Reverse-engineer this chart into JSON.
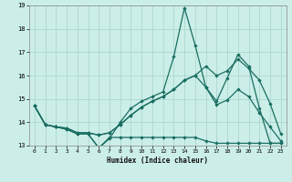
{
  "xlabel": "Humidex (Indice chaleur)",
  "background_color": "#cceee8",
  "grid_color": "#aad8d0",
  "line_color": "#1a6e62",
  "xlim": [
    -0.5,
    23.5
  ],
  "ylim": [
    13,
    19
  ],
  "yticks": [
    13,
    14,
    15,
    16,
    17,
    18,
    19
  ],
  "xticks": [
    0,
    1,
    2,
    3,
    4,
    5,
    6,
    7,
    8,
    9,
    10,
    11,
    12,
    13,
    14,
    15,
    16,
    17,
    18,
    19,
    20,
    21,
    22,
    23
  ],
  "line1": [
    14.7,
    13.9,
    13.8,
    13.7,
    13.5,
    13.5,
    12.9,
    13.3,
    14.0,
    14.6,
    14.9,
    15.1,
    15.3,
    16.8,
    18.9,
    17.3,
    15.5,
    14.9,
    15.9,
    16.9,
    16.4,
    14.6,
    13.1,
    13.1
  ],
  "line2": [
    14.7,
    13.9,
    13.8,
    13.7,
    13.5,
    13.5,
    12.9,
    13.35,
    13.35,
    13.35,
    13.35,
    13.35,
    13.35,
    13.35,
    13.35,
    13.35,
    13.2,
    13.1,
    13.1,
    13.1,
    13.1,
    13.1,
    13.1,
    13.1
  ],
  "line3": [
    14.7,
    13.9,
    13.8,
    13.75,
    13.55,
    13.55,
    13.45,
    13.55,
    13.9,
    14.3,
    14.65,
    14.9,
    15.1,
    15.4,
    15.8,
    16.0,
    16.4,
    16.0,
    16.2,
    16.7,
    16.3,
    15.8,
    14.8,
    13.5
  ],
  "line4": [
    14.7,
    13.9,
    13.8,
    13.75,
    13.55,
    13.55,
    13.45,
    13.55,
    13.9,
    14.3,
    14.65,
    14.9,
    15.1,
    15.4,
    15.8,
    16.0,
    15.5,
    14.75,
    14.95,
    15.4,
    15.1,
    14.4,
    13.8,
    13.2
  ]
}
